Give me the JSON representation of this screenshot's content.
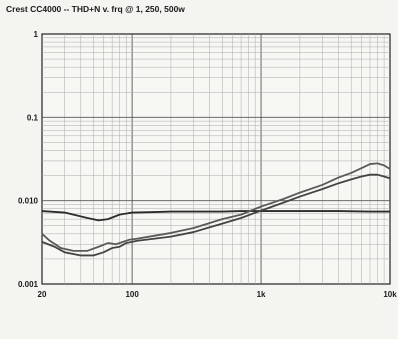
{
  "chart_data": {
    "type": "line",
    "title": "Crest CC4000 -- THD+N v. frq @ 1, 250, 500w",
    "xlabel": "",
    "ylabel": "",
    "x_scale": "log",
    "y_scale": "log",
    "xlim": [
      20,
      10000
    ],
    "ylim": [
      0.001,
      1
    ],
    "grid": true,
    "x_ticks": [
      {
        "value": 20,
        "label": "20"
      },
      {
        "value": 100,
        "label": "100"
      },
      {
        "value": 1000,
        "label": "1k"
      },
      {
        "value": 10000,
        "label": "10k"
      }
    ],
    "y_ticks": [
      {
        "value": 1,
        "label": "1"
      },
      {
        "value": 0.1,
        "label": "0.1"
      },
      {
        "value": 0.01,
        "label": "0.010"
      },
      {
        "value": 0.001,
        "label": "0.001"
      }
    ],
    "series": [
      {
        "color": "#2b2b2b",
        "points": [
          [
            20,
            0.0075
          ],
          [
            30,
            0.0072
          ],
          [
            45,
            0.0062
          ],
          [
            55,
            0.0058
          ],
          [
            65,
            0.006
          ],
          [
            80,
            0.0068
          ],
          [
            100,
            0.0072
          ],
          [
            150,
            0.0073
          ],
          [
            200,
            0.0074
          ],
          [
            300,
            0.0074
          ],
          [
            500,
            0.0074
          ],
          [
            700,
            0.0075
          ],
          [
            1000,
            0.0075
          ],
          [
            2000,
            0.0075
          ],
          [
            4000,
            0.0075
          ],
          [
            7000,
            0.0074
          ],
          [
            10000,
            0.0074
          ]
        ]
      },
      {
        "color": "#5a5a5a",
        "points": [
          [
            20,
            0.004
          ],
          [
            23,
            0.0033
          ],
          [
            28,
            0.0027
          ],
          [
            35,
            0.0025
          ],
          [
            45,
            0.0025
          ],
          [
            55,
            0.0028
          ],
          [
            65,
            0.0031
          ],
          [
            75,
            0.003
          ],
          [
            85,
            0.0032
          ],
          [
            95,
            0.0034
          ],
          [
            110,
            0.0035
          ],
          [
            150,
            0.0038
          ],
          [
            200,
            0.0041
          ],
          [
            300,
            0.0047
          ],
          [
            400,
            0.0054
          ],
          [
            500,
            0.006
          ],
          [
            700,
            0.0068
          ],
          [
            1000,
            0.0085
          ],
          [
            1500,
            0.0105
          ],
          [
            2000,
            0.0125
          ],
          [
            3000,
            0.0155
          ],
          [
            4000,
            0.019
          ],
          [
            5000,
            0.0215
          ],
          [
            6000,
            0.0245
          ],
          [
            7000,
            0.0275
          ],
          [
            8000,
            0.028
          ],
          [
            9000,
            0.0265
          ],
          [
            10000,
            0.024
          ]
        ]
      },
      {
        "color": "#444444",
        "points": [
          [
            20,
            0.0032
          ],
          [
            25,
            0.0028
          ],
          [
            30,
            0.0024
          ],
          [
            40,
            0.0022
          ],
          [
            50,
            0.0022
          ],
          [
            60,
            0.0024
          ],
          [
            70,
            0.0027
          ],
          [
            80,
            0.0028
          ],
          [
            90,
            0.0031
          ],
          [
            110,
            0.0033
          ],
          [
            150,
            0.0035
          ],
          [
            200,
            0.0037
          ],
          [
            300,
            0.0042
          ],
          [
            400,
            0.0048
          ],
          [
            500,
            0.0053
          ],
          [
            700,
            0.0062
          ],
          [
            1000,
            0.0076
          ],
          [
            1500,
            0.0095
          ],
          [
            2000,
            0.0112
          ],
          [
            3000,
            0.0138
          ],
          [
            4000,
            0.0162
          ],
          [
            5000,
            0.018
          ],
          [
            6000,
            0.0195
          ],
          [
            7000,
            0.0205
          ],
          [
            8000,
            0.0205
          ],
          [
            9000,
            0.0195
          ],
          [
            10000,
            0.0185
          ]
        ]
      }
    ]
  }
}
